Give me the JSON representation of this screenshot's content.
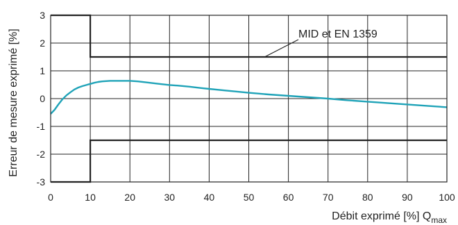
{
  "chart_data": {
    "type": "line",
    "xlabel": "Débit exprimé [%] Q",
    "xlabel_sub": "max",
    "ylabel": "Erreur de mesure exprimé [%]",
    "xlim": [
      0,
      100
    ],
    "ylim": [
      -3,
      3
    ],
    "x_ticks": [
      "0",
      "10",
      "20",
      "30",
      "40",
      "50",
      "60",
      "70",
      "80",
      "90",
      "100"
    ],
    "y_ticks": [
      "3",
      "2",
      "1",
      "0",
      "-1",
      "-2",
      "-3"
    ],
    "grid": true,
    "annotation": "MID et EN 1359",
    "colors": {
      "curve": "#1fa3b8",
      "limit": "#222222",
      "grid": "#222222"
    },
    "series": [
      {
        "x": [
          0,
          1,
          2,
          3,
          4,
          5,
          6,
          7,
          8,
          9,
          10,
          11,
          12,
          13,
          14,
          15,
          16,
          18,
          20,
          22,
          25,
          28,
          30,
          32,
          35,
          38,
          40,
          45,
          50,
          55,
          60,
          65,
          70,
          75,
          80,
          85,
          90,
          95,
          100
        ],
        "y": [
          -0.55,
          -0.4,
          -0.2,
          -0.02,
          0.12,
          0.23,
          0.33,
          0.4,
          0.45,
          0.49,
          0.53,
          0.57,
          0.6,
          0.62,
          0.63,
          0.64,
          0.64,
          0.64,
          0.64,
          0.62,
          0.57,
          0.52,
          0.49,
          0.47,
          0.43,
          0.38,
          0.35,
          0.28,
          0.21,
          0.15,
          0.1,
          0.05,
          0.0,
          -0.06,
          -0.11,
          -0.16,
          -0.21,
          -0.26,
          -0.31
        ]
      },
      {
        "x": [
          0,
          10,
          10,
          100
        ],
        "y": [
          3,
          3,
          1.5,
          1.5
        ]
      },
      {
        "x": [
          0,
          10,
          10,
          100
        ],
        "y": [
          -3,
          -3,
          -1.5,
          -1.5
        ]
      }
    ]
  }
}
